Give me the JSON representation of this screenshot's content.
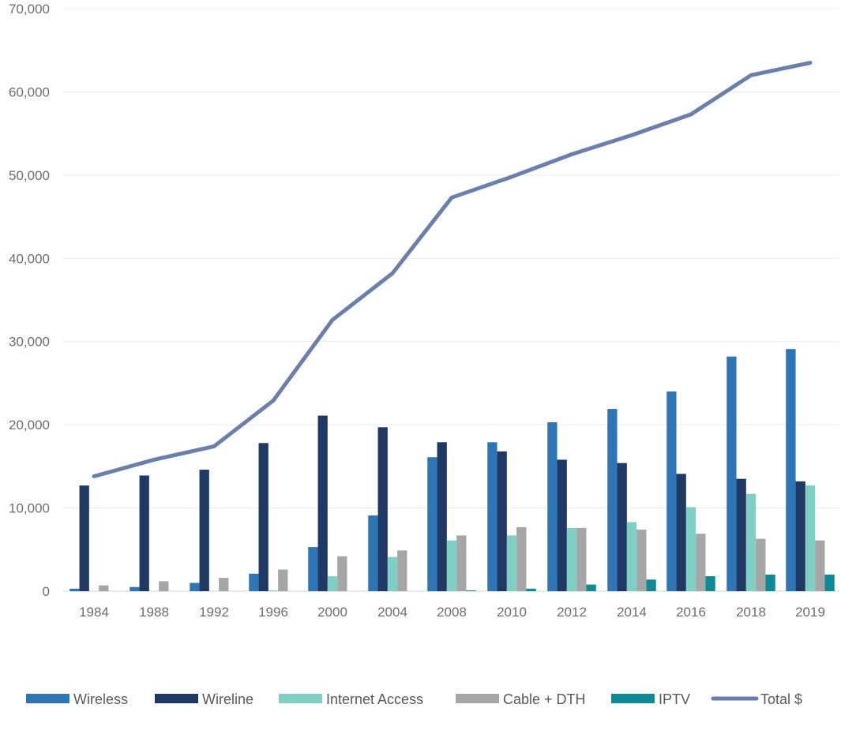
{
  "chart_data": {
    "type": "bar",
    "title": "",
    "xlabel": "",
    "ylabel": "",
    "ylim": [
      0,
      70000
    ],
    "yticks": [
      0,
      10000,
      20000,
      30000,
      40000,
      50000,
      60000,
      70000
    ],
    "ytick_labels": [
      "0",
      "10,000",
      "20,000",
      "30,000",
      "40,000",
      "50,000",
      "60,000",
      "70,000"
    ],
    "grid": true,
    "legend_position": "bottom",
    "categories": [
      "1984",
      "1988",
      "1992",
      "1996",
      "2000",
      "2004",
      "2008",
      "2010",
      "2012",
      "2014",
      "2016",
      "2018",
      "2019"
    ],
    "series": [
      {
        "name": "Wireless",
        "type": "bar",
        "color": "#2e75b6",
        "values": [
          300,
          500,
          1000,
          2100,
          5300,
          9100,
          16100,
          17900,
          20300,
          21900,
          24000,
          28200,
          29100
        ]
      },
      {
        "name": "Wireline",
        "type": "bar",
        "color": "#1f3864",
        "values": [
          12700,
          13900,
          14600,
          17800,
          21100,
          19700,
          17900,
          16800,
          15800,
          15400,
          14100,
          13500,
          13200
        ]
      },
      {
        "name": "Internet Access",
        "type": "bar",
        "color": "#7fcfc4",
        "values": [
          0,
          0,
          0,
          100,
          1800,
          4100,
          6100,
          6700,
          7600,
          8300,
          10100,
          11700,
          12700
        ]
      },
      {
        "name": "Cable + DTH",
        "type": "bar",
        "color": "#a6a6a6",
        "values": [
          700,
          1200,
          1600,
          2600,
          4200,
          4900,
          6700,
          7700,
          7600,
          7400,
          6900,
          6300,
          6100
        ]
      },
      {
        "name": "IPTV",
        "type": "bar",
        "color": "#0e8a96",
        "values": [
          0,
          0,
          0,
          0,
          0,
          0,
          100,
          300,
          800,
          1400,
          1800,
          2000,
          2000
        ]
      },
      {
        "name": "Total $",
        "type": "line",
        "color": "#6b7fad",
        "values": [
          13800,
          15800,
          17400,
          22900,
          32600,
          38200,
          47300,
          49800,
          52500,
          54800,
          57300,
          62000,
          63500
        ]
      }
    ]
  }
}
